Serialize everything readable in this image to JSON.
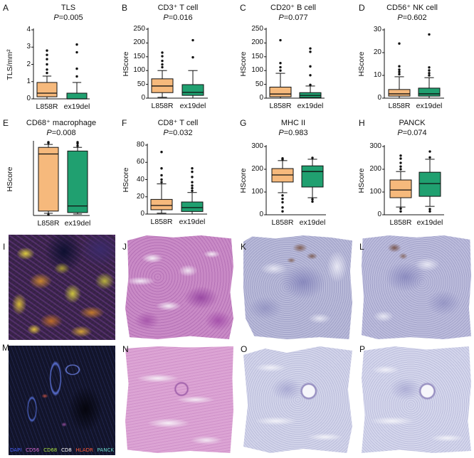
{
  "chart_data": [
    {
      "panel": "A",
      "type": "box",
      "title": "TLS",
      "subtitle": "P=0.005",
      "ylabel": "TLS/mm²",
      "categories": [
        "L858R",
        "ex19del"
      ],
      "ylim": [
        0,
        4
      ],
      "yticks": [
        0,
        1,
        2,
        3,
        4
      ],
      "series": [
        {
          "color": "#f6b97c",
          "whisker_low": 0,
          "q1": 0.12,
          "median": 0.33,
          "q3": 0.95,
          "whisker_high": 1.32,
          "outliers": [
            1.5,
            1.7,
            2.0,
            2.3,
            2.55,
            2.8
          ]
        },
        {
          "color": "#20a070",
          "whisker_low": 0,
          "q1": 0,
          "median": 0,
          "q3": 0.33,
          "whisker_high": 0.95,
          "outliers": [
            1.3,
            1.75,
            2.7,
            3.15
          ]
        }
      ]
    },
    {
      "panel": "B",
      "type": "box",
      "title": "CD3⁺ T cell",
      "subtitle": "P=0.016",
      "ylabel": "HScore",
      "categories": [
        "L858R",
        "ex19del"
      ],
      "ylim": [
        0,
        250
      ],
      "yticks": [
        0,
        50,
        100,
        150,
        200,
        250
      ],
      "series": [
        {
          "color": "#f6b97c",
          "whisker_low": 3,
          "q1": 20,
          "median": 44,
          "q3": 70,
          "whisker_high": 100,
          "outliers": [
            112,
            122,
            135,
            152,
            165
          ]
        },
        {
          "color": "#20a070",
          "whisker_low": 0,
          "q1": 10,
          "median": 21,
          "q3": 49,
          "whisker_high": 100,
          "outliers": [
            148,
            210
          ]
        }
      ]
    },
    {
      "panel": "C",
      "type": "box",
      "title": "CD20⁺ B cell",
      "subtitle": "P=0.077",
      "ylabel": "HScore",
      "categories": [
        "L858R",
        "ex19del"
      ],
      "ylim": [
        0,
        250
      ],
      "yticks": [
        0,
        50,
        100,
        150,
        200,
        250
      ],
      "series": [
        {
          "color": "#f6b97c",
          "whisker_low": 0,
          "q1": 5,
          "median": 15,
          "q3": 40,
          "whisker_high": 90,
          "outliers": [
            100,
            112,
            127,
            210
          ]
        },
        {
          "color": "#20a070",
          "whisker_low": 0,
          "q1": 2,
          "median": 10,
          "q3": 20,
          "whisker_high": 44,
          "outliers": [
            48,
            83,
            115,
            168,
            180
          ]
        }
      ]
    },
    {
      "panel": "D",
      "type": "box",
      "title": "CD56⁺ NK cell",
      "subtitle": "P=0.602",
      "ylabel": "HScore",
      "categories": [
        "L858R",
        "ex19del"
      ],
      "ylim": [
        0,
        30
      ],
      "yticks": [
        0,
        10,
        20,
        30
      ],
      "series": [
        {
          "color": "#f6b97c",
          "whisker_low": 0,
          "q1": 0.9,
          "median": 1.9,
          "q3": 3.8,
          "whisker_high": 9.4,
          "outliers": [
            10.5,
            11.5,
            12.5,
            14,
            24
          ]
        },
        {
          "color": "#20a070",
          "whisker_low": 0,
          "q1": 0.9,
          "median": 1.9,
          "q3": 4.4,
          "whisker_high": 9,
          "outliers": [
            10,
            11,
            12.2,
            13.5,
            28
          ]
        }
      ]
    },
    {
      "panel": "E",
      "type": "box",
      "title": "CD68⁺ macrophage",
      "subtitle": "P=0.008",
      "ylabel": "HScore",
      "categories": [
        "L858R",
        "ex19del"
      ],
      "yticks": [],
      "series": [
        {
          "color": "#f6b97c",
          "whisker_low": 0.03,
          "q1": 0.06,
          "median": 0.84,
          "q3": 0.93,
          "whisker_high": 0.97,
          "outliers": [
            0.99,
            1.0,
            0.01
          ]
        },
        {
          "color": "#20a070",
          "whisker_low": 0.02,
          "q1": 0.04,
          "median": 0.13,
          "q3": 0.88,
          "whisker_high": 0.93,
          "outliers": [
            0.95,
            0.98,
            1.0
          ]
        }
      ]
    },
    {
      "panel": "F",
      "type": "box",
      "title": "CD8⁺ T cell",
      "subtitle": "P=0.032",
      "ylabel": "HScore",
      "categories": [
        "L858R",
        "ex19del"
      ],
      "ylim": [
        0,
        80
      ],
      "yticks": [
        0,
        20,
        40,
        60,
        80
      ],
      "series": [
        {
          "color": "#f6b97c",
          "whisker_low": 1,
          "q1": 5,
          "median": 10,
          "q3": 17,
          "whisker_high": 35,
          "outliers": [
            37,
            40,
            45,
            53,
            72
          ]
        },
        {
          "color": "#20a070",
          "whisker_low": 0,
          "q1": 3,
          "median": 7.5,
          "q3": 14,
          "whisker_high": 25,
          "outliers": [
            27,
            30,
            33,
            37,
            43,
            49,
            53
          ]
        }
      ]
    },
    {
      "panel": "G",
      "type": "box",
      "title": "MHC II",
      "subtitle": "P=0.983",
      "ylabel": "HScore",
      "categories": [
        "L858R",
        "ex19del"
      ],
      "ylim": [
        0,
        300
      ],
      "yticks": [
        0,
        100,
        200,
        300
      ],
      "series": [
        {
          "color": "#f6b97c",
          "whisker_low": 97,
          "q1": 144,
          "median": 175,
          "q3": 203,
          "whisker_high": 238,
          "outliers": [
            243,
            248,
            85,
            70,
            55,
            32,
            15
          ]
        },
        {
          "color": "#20a070",
          "whisker_low": 75,
          "q1": 122,
          "median": 190,
          "q3": 215,
          "whisker_high": 244,
          "outliers": [
            250,
            68,
            58
          ]
        }
      ]
    },
    {
      "panel": "H",
      "type": "box",
      "title": "PANCK",
      "subtitle": "P=0.074",
      "ylabel": "HScore",
      "categories": [
        "L858R",
        "ex19del"
      ],
      "ylim": [
        0,
        300
      ],
      "yticks": [
        0,
        100,
        200,
        300
      ],
      "series": [
        {
          "color": "#f6b97c",
          "whisker_low": 34,
          "q1": 75,
          "median": 109,
          "q3": 153,
          "whisker_high": 190,
          "outliers": [
            200,
            212,
            228,
            247,
            260,
            27,
            15
          ]
        },
        {
          "color": "#20a070",
          "whisker_low": 37,
          "q1": 81,
          "median": 137,
          "q3": 187,
          "whisker_high": 244,
          "outliers": [
            252,
            278,
            25,
            15
          ]
        }
      ]
    }
  ],
  "image_panels": [
    {
      "label": "I"
    },
    {
      "label": "J"
    },
    {
      "label": "K"
    },
    {
      "label": "L"
    },
    {
      "label": "M"
    },
    {
      "label": "N"
    },
    {
      "label": "O"
    },
    {
      "label": "P"
    }
  ],
  "mif_legend": [
    {
      "label": "DAPI",
      "color": "#4a63ff"
    },
    {
      "label": "CD56",
      "color": "#d86ad0"
    },
    {
      "label": "CD68",
      "color": "#a8e040"
    },
    {
      "label": "CD8",
      "color": "#ffffff"
    },
    {
      "label": "HLADR",
      "color": "#ff5a3a"
    },
    {
      "label": "PANCK",
      "color": "#6ad8c8"
    }
  ]
}
